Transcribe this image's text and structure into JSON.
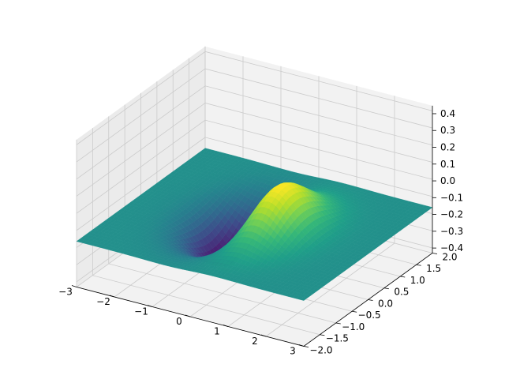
{
  "chart_data": {
    "type": "surface3d",
    "function": "z = x * exp(-x^2 - y^2)",
    "colormap": "viridis",
    "colormap_stops": [
      "#440154",
      "#482878",
      "#3e4a89",
      "#31688e",
      "#26828e",
      "#1f9e89",
      "#35b779",
      "#6ece58",
      "#b5de2b",
      "#fde725"
    ],
    "grid": true,
    "x": {
      "range": [
        -3,
        3
      ],
      "ticks": [
        -3,
        -2,
        -1,
        0,
        1,
        2,
        3
      ],
      "tick_labels": [
        "−3",
        "−2",
        "−1",
        "0",
        "1",
        "2",
        "3"
      ]
    },
    "y": {
      "range": [
        -2,
        2
      ],
      "ticks": [
        -2.0,
        -1.5,
        -1.0,
        -0.5,
        0.0,
        0.5,
        1.0,
        1.5,
        2.0
      ],
      "tick_labels": [
        "−2.0",
        "−1.5",
        "−1.0",
        "−0.5",
        "0.0",
        "0.5",
        "1.0",
        "1.5",
        "2.0"
      ]
    },
    "z": {
      "range": [
        -0.43,
        0.43
      ],
      "ticks": [
        -0.4,
        -0.3,
        -0.2,
        -0.1,
        0.0,
        0.1,
        0.2,
        0.3,
        0.4
      ],
      "tick_labels": [
        "−0.4",
        "−0.3",
        "−0.2",
        "−0.1",
        "0.0",
        "0.1",
        "0.2",
        "0.3",
        "0.4"
      ]
    },
    "extrema": {
      "max": {
        "x": 0.71,
        "y": 0.0,
        "z": 0.43
      },
      "min": {
        "x": -0.71,
        "y": 0.0,
        "z": -0.43
      }
    },
    "mesh": {
      "nx": 60,
      "ny": 40
    }
  }
}
